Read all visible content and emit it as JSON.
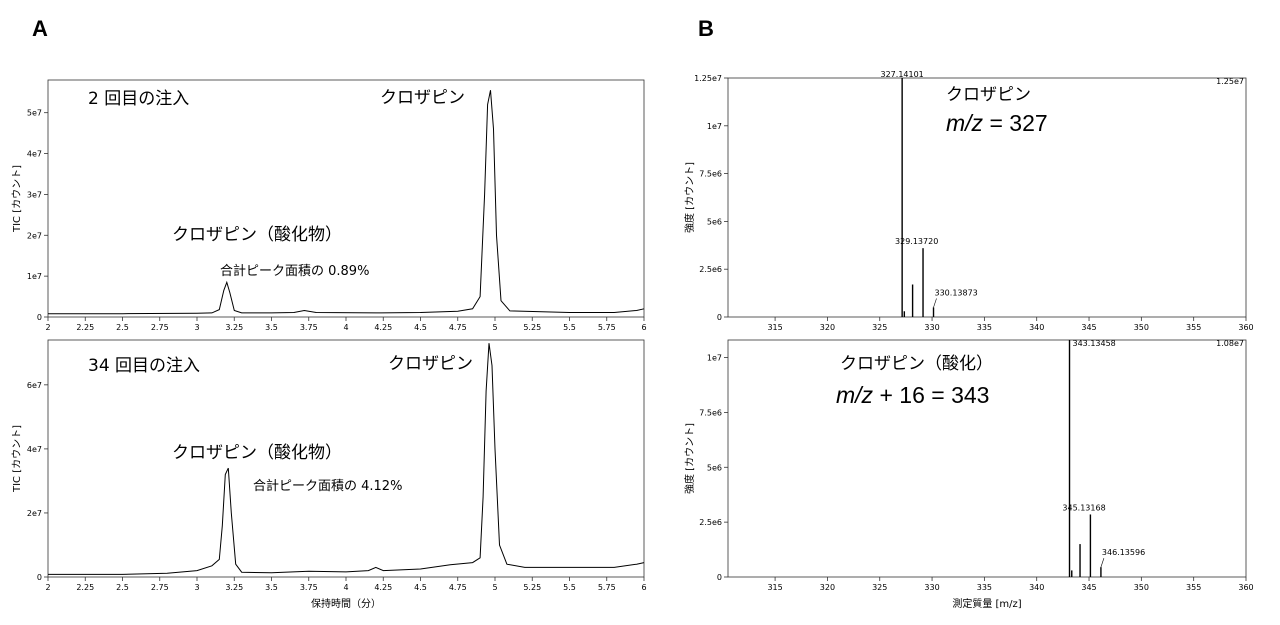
{
  "panels": {
    "a_letter": "A",
    "b_letter": "B"
  },
  "chart_data": [
    {
      "id": "A-top",
      "type": "line",
      "ylabel": "TIC [カウント]",
      "xlabel": "",
      "xlim": [
        2,
        6
      ],
      "ylim": [
        0,
        58000000
      ],
      "xticks": [
        "2",
        "2.25",
        "2.5",
        "2.75",
        "3",
        "3.25",
        "3.5",
        "3.75",
        "4",
        "4.25",
        "4.5",
        "4.75",
        "5",
        "5.25",
        "5.5",
        "5.75",
        "6"
      ],
      "yticks": [
        "0",
        "1e7",
        "2e7",
        "3e7",
        "4e7",
        "5e7"
      ],
      "series": [
        {
          "color": "#000000",
          "points": [
            [
              2.0,
              0.8
            ],
            [
              2.5,
              0.8
            ],
            [
              3.0,
              0.9
            ],
            [
              3.1,
              1.0
            ],
            [
              3.15,
              1.8
            ],
            [
              3.18,
              6.5
            ],
            [
              3.2,
              8.5
            ],
            [
              3.22,
              6.0
            ],
            [
              3.25,
              1.6
            ],
            [
              3.3,
              1.0
            ],
            [
              3.5,
              1.0
            ],
            [
              3.65,
              1.1
            ],
            [
              3.72,
              1.6
            ],
            [
              3.8,
              1.1
            ],
            [
              4.2,
              1.0
            ],
            [
              4.5,
              1.1
            ],
            [
              4.75,
              1.4
            ],
            [
              4.85,
              2.0
            ],
            [
              4.9,
              5.0
            ],
            [
              4.93,
              30.0
            ],
            [
              4.95,
              52.0
            ],
            [
              4.97,
              55.5
            ],
            [
              4.99,
              46.0
            ],
            [
              5.01,
              20.0
            ],
            [
              5.04,
              4.0
            ],
            [
              5.1,
              1.5
            ],
            [
              5.5,
              1.1
            ],
            [
              5.8,
              1.1
            ],
            [
              5.95,
              1.6
            ],
            [
              6.0,
              2.0
            ]
          ]
        }
      ],
      "y_unit_scale": "1e6",
      "annotations": {
        "injection": "2 回目の注入",
        "clozapine": "クロザピン",
        "oxide": "クロザピン（酸化物）",
        "area": "合計ピーク面積の 0.89%"
      }
    },
    {
      "id": "A-bottom",
      "type": "line",
      "ylabel": "TIC [カウント]",
      "xlabel": "保持時間（分）",
      "xlim": [
        2,
        6
      ],
      "ylim": [
        0,
        74000000
      ],
      "xticks": [
        "2",
        "2.25",
        "2.5",
        "2.75",
        "3",
        "3.25",
        "3.5",
        "3.75",
        "4",
        "4.25",
        "4.5",
        "4.75",
        "5",
        "5.25",
        "5.5",
        "5.75",
        "6"
      ],
      "yticks": [
        "0",
        "2e7",
        "4e7",
        "6e7"
      ],
      "series": [
        {
          "color": "#000000",
          "points": [
            [
              2.0,
              0.8
            ],
            [
              2.5,
              0.8
            ],
            [
              2.8,
              1.2
            ],
            [
              3.0,
              2.0
            ],
            [
              3.1,
              3.5
            ],
            [
              3.15,
              5.5
            ],
            [
              3.17,
              16.0
            ],
            [
              3.19,
              32.0
            ],
            [
              3.21,
              34.0
            ],
            [
              3.23,
              20.0
            ],
            [
              3.26,
              4.0
            ],
            [
              3.3,
              1.5
            ],
            [
              3.5,
              1.3
            ],
            [
              3.75,
              1.8
            ],
            [
              4.0,
              1.6
            ],
            [
              4.15,
              2.0
            ],
            [
              4.2,
              3.0
            ],
            [
              4.25,
              2.0
            ],
            [
              4.5,
              2.5
            ],
            [
              4.7,
              3.8
            ],
            [
              4.85,
              4.5
            ],
            [
              4.9,
              6.0
            ],
            [
              4.92,
              25.0
            ],
            [
              4.94,
              58.0
            ],
            [
              4.96,
              73.0
            ],
            [
              4.98,
              66.0
            ],
            [
              5.0,
              40.0
            ],
            [
              5.03,
              10.0
            ],
            [
              5.08,
              4.0
            ],
            [
              5.2,
              3.0
            ],
            [
              5.5,
              3.0
            ],
            [
              5.8,
              3.0
            ],
            [
              5.95,
              4.0
            ],
            [
              6.0,
              4.5
            ]
          ]
        }
      ],
      "y_unit_scale": "1e6",
      "annotations": {
        "injection": "34 回目の注入",
        "clozapine": "クロザピン",
        "oxide": "クロザピン（酸化物）",
        "area": "合計ピーク面積の 4.12%"
      }
    },
    {
      "id": "B-top",
      "type": "bar",
      "ylabel": "強度 [カウント]",
      "xlabel": "",
      "xlim": [
        310.5,
        360
      ],
      "ylim": [
        0,
        12500000
      ],
      "xticks": [
        "315",
        "320",
        "325",
        "330",
        "335",
        "340",
        "345",
        "350",
        "355",
        "360"
      ],
      "yticks": [
        "0",
        "2.5e6",
        "5e6",
        "7.5e6",
        "1e7",
        "1.25e7"
      ],
      "max_label": "1.25e7",
      "sticks": [
        [
          327.141,
          12.5
        ],
        [
          327.35,
          0.3
        ],
        [
          328.14,
          1.7
        ],
        [
          329.137,
          3.6
        ],
        [
          330.139,
          0.5
        ]
      ],
      "y_unit_scale": "1e6",
      "peak_labels": [
        {
          "mz": 327.141,
          "text": "327.14101"
        },
        {
          "mz": 329.137,
          "text": "329.13720"
        },
        {
          "mz": 330.139,
          "text": "330.13873"
        }
      ],
      "annotations": {
        "name": "クロザピン",
        "mz_italic": "m/z",
        "mz_value": " = 327"
      }
    },
    {
      "id": "B-bottom",
      "type": "bar",
      "ylabel": "強度 [カウント]",
      "xlabel": "測定質量 [m/z]",
      "xlim": [
        310.5,
        360
      ],
      "ylim": [
        0,
        10800000
      ],
      "xticks": [
        "315",
        "320",
        "325",
        "330",
        "335",
        "340",
        "345",
        "350",
        "355",
        "360"
      ],
      "yticks": [
        "0",
        "2.5e6",
        "5e6",
        "7.5e6",
        "1e7"
      ],
      "max_label": "1.08e7",
      "sticks": [
        [
          343.135,
          10.8
        ],
        [
          343.35,
          0.3
        ],
        [
          344.14,
          1.5
        ],
        [
          345.132,
          2.85
        ],
        [
          346.136,
          0.45
        ]
      ],
      "y_unit_scale": "1e6",
      "peak_labels": [
        {
          "mz": 343.135,
          "text": "343.13458"
        },
        {
          "mz": 345.132,
          "text": "345.13168"
        },
        {
          "mz": 346.136,
          "text": "346.13596"
        }
      ],
      "annotations": {
        "name": "クロザピン（酸化）",
        "mz_italic": "m/z",
        "mz_value": " + 16 = 343"
      }
    }
  ]
}
